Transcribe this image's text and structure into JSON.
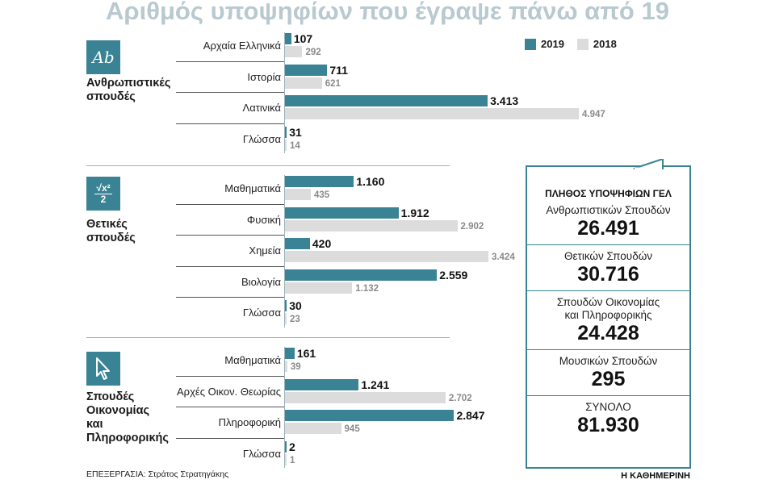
{
  "title": "Αριθμός υποψηφίων που έγραψε πάνω από 19",
  "legend": [
    {
      "name": "2019",
      "color": "#3a8394"
    },
    {
      "name": "2018",
      "color": "#dcdcdc"
    }
  ],
  "chart_data": {
    "type": "bar",
    "orientation": "horizontal",
    "title": "Αριθμός υποψηφίων που έγραψε πάνω από 19",
    "series_names": [
      "2019",
      "2018"
    ],
    "groups": [
      {
        "name_lines": [
          "Ανθρωπιστικές",
          "σπουδές"
        ],
        "icon": "ab-letters-icon",
        "subjects": [
          {
            "label": "Αρχαία Ελληνικά",
            "v2019": 107,
            "v2018": 292,
            "t2019": "107",
            "t2018": "292"
          },
          {
            "label": "Ιστορία",
            "v2019": 711,
            "v2018": 621,
            "t2019": "711",
            "t2018": "621"
          },
          {
            "label": "Λατινικά",
            "v2019": 3413,
            "v2018": 4947,
            "t2019": "3.413",
            "t2018": "4.947"
          },
          {
            "label": "Γλώσσα",
            "v2019": 31,
            "v2018": 14,
            "t2019": "31",
            "t2018": "14"
          }
        ]
      },
      {
        "name_lines": [
          "Θετικές",
          "σπουδές"
        ],
        "icon": "math-formula-icon",
        "subjects": [
          {
            "label": "Μαθηματικά",
            "v2019": 1160,
            "v2018": 435,
            "t2019": "1.160",
            "t2018": "435"
          },
          {
            "label": "Φυσική",
            "v2019": 1912,
            "v2018": 2902,
            "t2019": "1.912",
            "t2018": "2.902"
          },
          {
            "label": "Χημεία",
            "v2019": 420,
            "v2018": 3424,
            "t2019": "420",
            "t2018": "3.424"
          },
          {
            "label": "Βιολογία",
            "v2019": 2559,
            "v2018": 1132,
            "t2019": "2.559",
            "t2018": "1.132"
          },
          {
            "label": "Γλώσσα",
            "v2019": 30,
            "v2018": 23,
            "t2019": "30",
            "t2018": "23"
          }
        ]
      },
      {
        "name_lines": [
          "Σπουδές",
          "Οικονομίας",
          "και",
          "Πληροφορικής"
        ],
        "icon": "cursor-arrow-icon",
        "subjects": [
          {
            "label": "Μαθηματικά",
            "v2019": 161,
            "v2018": 39,
            "t2019": "161",
            "t2018": "39"
          },
          {
            "label": "Αρχές Οικον. Θεωρίας",
            "v2019": 1241,
            "v2018": 2702,
            "t2019": "1.241",
            "t2018": "2.702"
          },
          {
            "label": "Πληροφορική",
            "v2019": 2847,
            "v2018": 945,
            "t2019": "2.847",
            "t2018": "945"
          },
          {
            "label": "Γλώσσα",
            "v2019": 2,
            "v2018": 1,
            "t2019": "2",
            "t2018": "1"
          }
        ]
      }
    ]
  },
  "icon_texts": {
    "ab": "Ab",
    "formula_top": "√x²",
    "formula_bottom": "2"
  },
  "panel": {
    "title": "ΠΛΗΘΟΣ ΥΠΟΨΗΦΙΩΝ ΓΕΛ",
    "entries": [
      {
        "label_lines": [
          "Ανθρωπιστικών Σπουδών"
        ],
        "value": "26.491"
      },
      {
        "label_lines": [
          "Θετικών Σπουδών"
        ],
        "value": "30.716"
      },
      {
        "label_lines": [
          "Σπουδών Οικονομίας",
          "και Πληροφορικής"
        ],
        "value": "24.428"
      },
      {
        "label_lines": [
          "Μουσικών Σπουδών"
        ],
        "value": "295"
      },
      {
        "label_lines": [
          "ΣΥΝΟΛΟ"
        ],
        "value": "81.930"
      }
    ]
  },
  "credit": "ΕΠΕΞΕΡΓΑΣΙΑ: Στράτος Στρατηγάκης",
  "brand": "Η ΚΑΘΗΜΕΡΙΝΗ"
}
